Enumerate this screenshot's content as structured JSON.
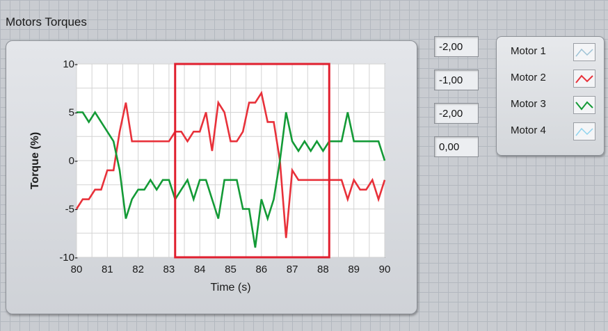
{
  "panel": {
    "title": "Motors Torques"
  },
  "readouts": [
    "-2,00",
    "-1,00",
    "-2,00",
    "0,00"
  ],
  "legend": [
    {
      "label": "Motor 1",
      "color": "#9ec3d6"
    },
    {
      "label": "Motor 2",
      "color": "#e8313a"
    },
    {
      "label": "Motor 3",
      "color": "#139a36"
    },
    {
      "label": "Motor 4",
      "color": "#8fd3ee"
    }
  ],
  "chart_data": {
    "type": "line",
    "title": "",
    "xlabel": "Time (s)",
    "ylabel": "Torque (%)",
    "xlim": [
      80,
      90
    ],
    "ylim": [
      -10,
      10
    ],
    "xticks": [
      "80",
      "81",
      "82",
      "83",
      "84",
      "85",
      "86",
      "87",
      "88",
      "89",
      "90"
    ],
    "yticks": [
      "10-",
      "5-",
      "0-",
      "-5-",
      "-10-"
    ],
    "grid": true,
    "highlight_box": {
      "x": [
        83.2,
        88.2
      ],
      "y": [
        -10,
        10
      ],
      "color": "#e01f2e"
    },
    "series": [
      {
        "name": "Motor 2",
        "color": "#e8313a",
        "x": [
          80.0,
          80.2,
          80.4,
          80.6,
          80.8,
          81.0,
          81.2,
          81.4,
          81.6,
          81.8,
          82.0,
          82.2,
          82.4,
          82.6,
          82.8,
          83.0,
          83.2,
          83.4,
          83.6,
          83.8,
          84.0,
          84.2,
          84.4,
          84.6,
          84.8,
          85.0,
          85.2,
          85.4,
          85.6,
          85.8,
          86.0,
          86.2,
          86.4,
          86.6,
          86.8,
          87.0,
          87.2,
          87.4,
          87.6,
          87.8,
          88.0,
          88.2,
          88.4,
          88.6,
          88.8,
          89.0,
          89.2,
          89.4,
          89.6,
          89.8,
          90.0
        ],
        "y": [
          -5,
          -4,
          -4,
          -3,
          -3,
          -1,
          -1,
          3,
          6,
          2,
          2,
          2,
          2,
          2,
          2,
          2,
          3,
          3,
          2,
          3,
          3,
          5,
          1,
          6,
          5,
          2,
          2,
          3,
          6,
          6,
          7,
          4,
          4,
          0,
          -8,
          -1,
          -2,
          -2,
          -2,
          -2,
          -2,
          -2,
          -2,
          -2,
          -4,
          -2,
          -3,
          -3,
          -2,
          -4,
          -2
        ]
      },
      {
        "name": "Motor 3",
        "color": "#139a36",
        "x": [
          80.0,
          80.2,
          80.4,
          80.6,
          80.8,
          81.0,
          81.2,
          81.4,
          81.6,
          81.8,
          82.0,
          82.2,
          82.4,
          82.6,
          82.8,
          83.0,
          83.2,
          83.4,
          83.6,
          83.8,
          84.0,
          84.2,
          84.4,
          84.6,
          84.8,
          85.0,
          85.2,
          85.4,
          85.6,
          85.8,
          86.0,
          86.2,
          86.4,
          86.6,
          86.8,
          87.0,
          87.2,
          87.4,
          87.6,
          87.8,
          88.0,
          88.2,
          88.4,
          88.6,
          88.8,
          89.0,
          89.2,
          89.4,
          89.6,
          89.8,
          90.0
        ],
        "y": [
          5,
          5,
          4,
          5,
          4,
          3,
          2,
          -1,
          -6,
          -4,
          -3,
          -3,
          -2,
          -3,
          -2,
          -2,
          -4,
          -3,
          -2,
          -4,
          -2,
          -2,
          -4,
          -6,
          -2,
          -2,
          -2,
          -5,
          -5,
          -9,
          -4,
          -6,
          -4,
          0,
          5,
          2,
          1,
          2,
          1,
          2,
          1,
          2,
          2,
          2,
          5,
          2,
          2,
          2,
          2,
          2,
          0
        ]
      }
    ]
  }
}
